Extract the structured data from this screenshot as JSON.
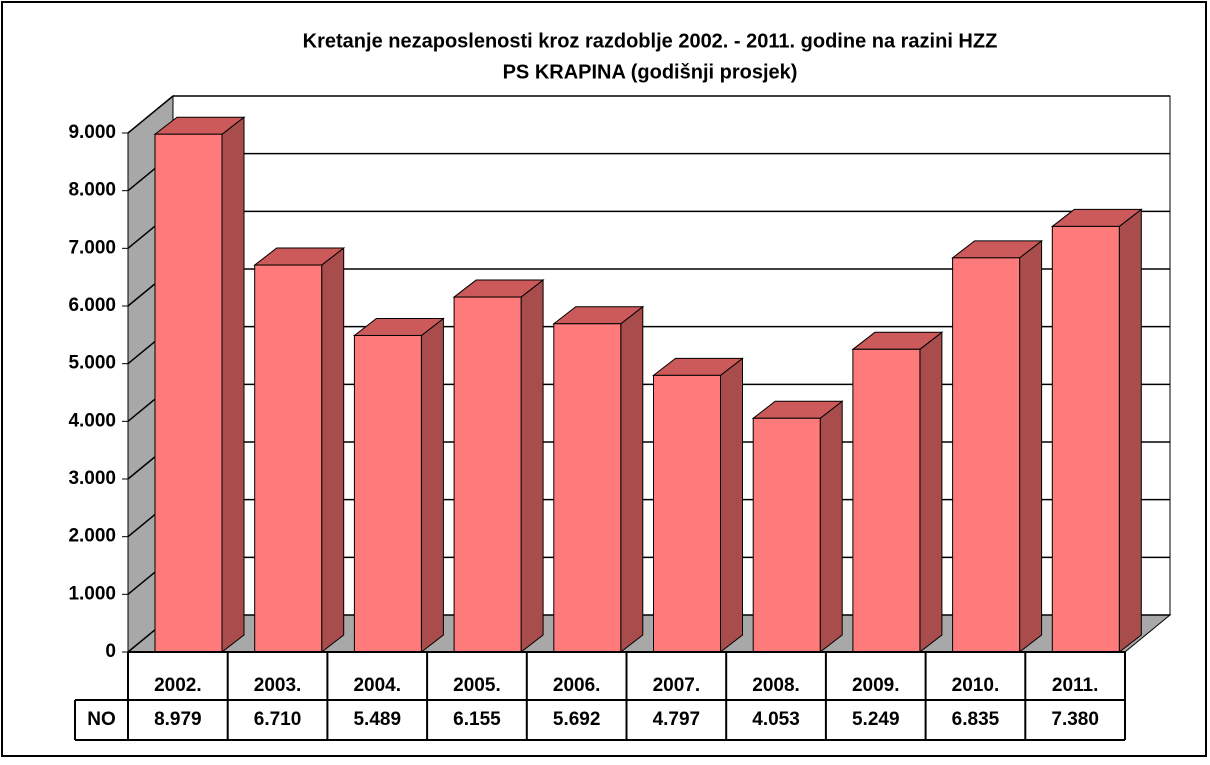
{
  "chart_data": {
    "type": "bar3d",
    "title": [
      "Kretanje nezaposlenosti kroz razdoblje 2002. - 2011. godine na razini HZZ",
      "PS KRAPINA (godišnji prosjek)"
    ],
    "categories": [
      "2002.",
      "2003.",
      "2004.",
      "2005.",
      "2006.",
      "2007.",
      "2008.",
      "2009.",
      "2010.",
      "2011."
    ],
    "series": [
      {
        "name": "NO",
        "color": "#ff7b7b",
        "values": [
          8979,
          6710,
          5489,
          6155,
          5692,
          4797,
          4053,
          5249,
          6835,
          7380
        ],
        "value_labels": [
          "8.979",
          "6.710",
          "5.489",
          "6.155",
          "5.692",
          "4.797",
          "4.053",
          "5.249",
          "6.835",
          "7.380"
        ]
      }
    ],
    "ylim": [
      0,
      9000
    ],
    "yticks": [
      0,
      {
        "value": 1000,
        "label": "1.000"
      },
      {
        "value": 2000,
        "label": "2.000"
      },
      {
        "value": 3000,
        "label": "3.000"
      },
      {
        "value": 4000,
        "label": "4.000"
      },
      {
        "value": 5000,
        "label": "5.000"
      },
      {
        "value": 6000,
        "label": "6.000"
      },
      {
        "value": 7000,
        "label": "7.000"
      },
      {
        "value": 8000,
        "label": "8.000"
      },
      {
        "value": 9000,
        "label": "9.000"
      }
    ],
    "grid": true,
    "data_table": true
  }
}
